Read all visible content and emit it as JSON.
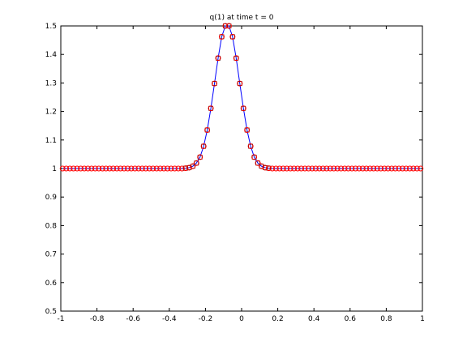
{
  "chart_data": {
    "type": "line",
    "title": "q(1)  at time t = 0",
    "xlabel": "",
    "ylabel": "",
    "xlim": [
      -1,
      1
    ],
    "ylim": [
      0.5,
      1.5
    ],
    "xticks": [
      -1,
      -0.8,
      -0.6,
      -0.4,
      -0.2,
      0,
      0.2,
      0.4,
      0.6,
      0.8,
      1
    ],
    "xtick_labels": [
      "-1",
      "-0.8",
      "-0.6",
      "-0.4",
      "-0.2",
      "0",
      "0.2",
      "0.4",
      "0.6",
      "0.8",
      "1"
    ],
    "yticks": [
      0.5,
      0.6,
      0.7,
      0.8,
      0.9,
      1,
      1.1,
      1.2,
      1.3,
      1.4,
      1.5
    ],
    "ytick_labels": [
      "0.5",
      "0.6",
      "0.7",
      "0.8",
      "0.9",
      "1",
      "1.1",
      "1.2",
      "1.3",
      "1.4",
      "1.5"
    ],
    "grid": false,
    "colors": {
      "line": "#0000ff",
      "circle": "#ff0000",
      "square": "#000000"
    },
    "series": [
      {
        "marker": "circle+line",
        "x": [
          -0.99,
          -0.97,
          -0.95,
          -0.93,
          -0.91,
          -0.89,
          -0.87,
          -0.85,
          -0.83,
          -0.81,
          -0.79,
          -0.77,
          -0.75,
          -0.73,
          -0.71,
          -0.69,
          -0.67,
          -0.65,
          -0.63,
          -0.61,
          -0.59,
          -0.57,
          -0.55,
          -0.53,
          -0.51,
          -0.49,
          -0.47,
          -0.45,
          -0.43,
          -0.41,
          -0.39,
          -0.37,
          -0.35,
          -0.33,
          -0.31,
          -0.29,
          -0.27,
          -0.25,
          -0.23,
          -0.21,
          -0.19,
          -0.17,
          -0.15,
          -0.13,
          -0.11,
          -0.09,
          -0.07,
          -0.05,
          -0.03,
          -0.01,
          0.01,
          0.03,
          0.05,
          0.07,
          0.09,
          0.11,
          0.13,
          0.15,
          0.17,
          0.19,
          0.21,
          0.23,
          0.25,
          0.27,
          0.29,
          0.31,
          0.33,
          0.35,
          0.37,
          0.39,
          0.41,
          0.43,
          0.45,
          0.47,
          0.49,
          0.51,
          0.53,
          0.55,
          0.57,
          0.59,
          0.61,
          0.63,
          0.65,
          0.67,
          0.69,
          0.71,
          0.73,
          0.75,
          0.77,
          0.79,
          0.81,
          0.83,
          0.85,
          0.87,
          0.89,
          0.91,
          0.93,
          0.95,
          0.97,
          0.99
        ],
        "y": [
          1,
          1,
          1,
          1,
          1,
          1,
          1,
          1,
          1,
          1,
          1,
          1,
          1,
          1,
          1,
          1,
          1,
          1,
          1,
          1,
          1,
          1,
          1,
          1,
          1,
          1,
          1,
          1,
          1,
          1,
          1,
          1,
          1,
          1,
          1.001,
          1.003,
          1.008,
          1.019,
          1.04,
          1.078,
          1.135,
          1.211,
          1.298,
          1.387,
          1.462,
          1.5,
          1.5,
          1.462,
          1.387,
          1.298,
          1.211,
          1.135,
          1.078,
          1.04,
          1.019,
          1.008,
          1.003,
          1.001,
          1,
          1,
          1,
          1,
          1,
          1,
          1,
          1,
          1,
          1,
          1,
          1,
          1,
          1,
          1,
          1,
          1,
          1,
          1,
          1,
          1,
          1,
          1,
          1,
          1,
          1,
          1,
          1,
          1,
          1,
          1,
          1,
          1,
          1,
          1,
          1,
          1,
          1,
          1,
          1,
          1,
          1
        ]
      }
    ]
  }
}
